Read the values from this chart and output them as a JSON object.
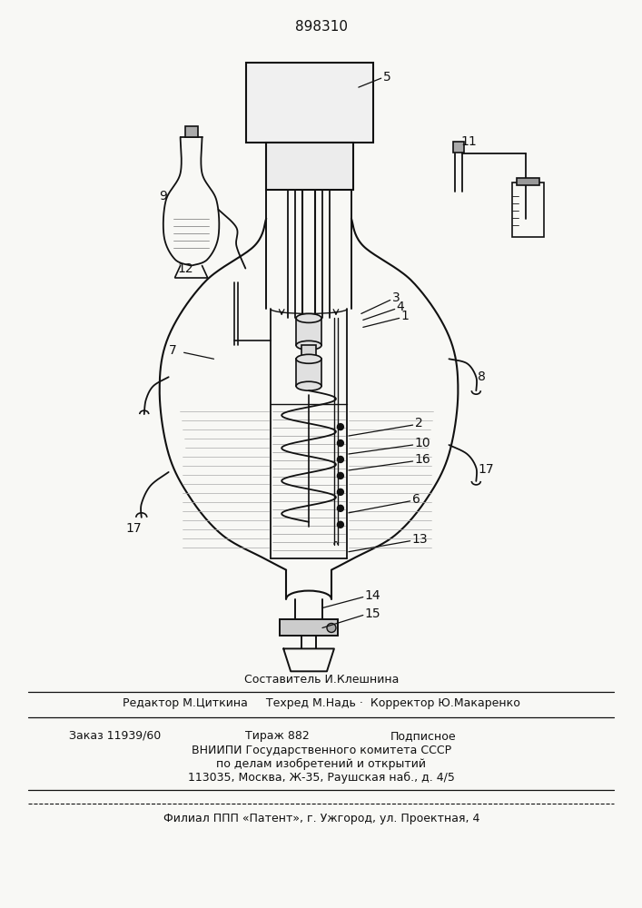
{
  "patent_number": "898310",
  "bg": "#f8f8f5",
  "lc": "#111111",
  "fig_w": 7.07,
  "fig_h": 10.0,
  "dpi": 100,
  "footer": {
    "line1": "Составитель И.Клешнина",
    "line2": "Редактор М.Циткина     Техред М.Надь ·  Корректор Ю.Макаренко",
    "line3a": "Заказ 11939/60",
    "line3b": "Тираж 882",
    "line3c": "Подписное",
    "line4": "ВНИИПИ Государственного комитета СССР",
    "line5": "по делам изобретений и открытий",
    "line6": "113035, Москва, Ж-35, Раушская наб., д. 4/5",
    "line7": "Филиал ППП «Патент», г. Ужгород, ул. Проектная, 4"
  }
}
